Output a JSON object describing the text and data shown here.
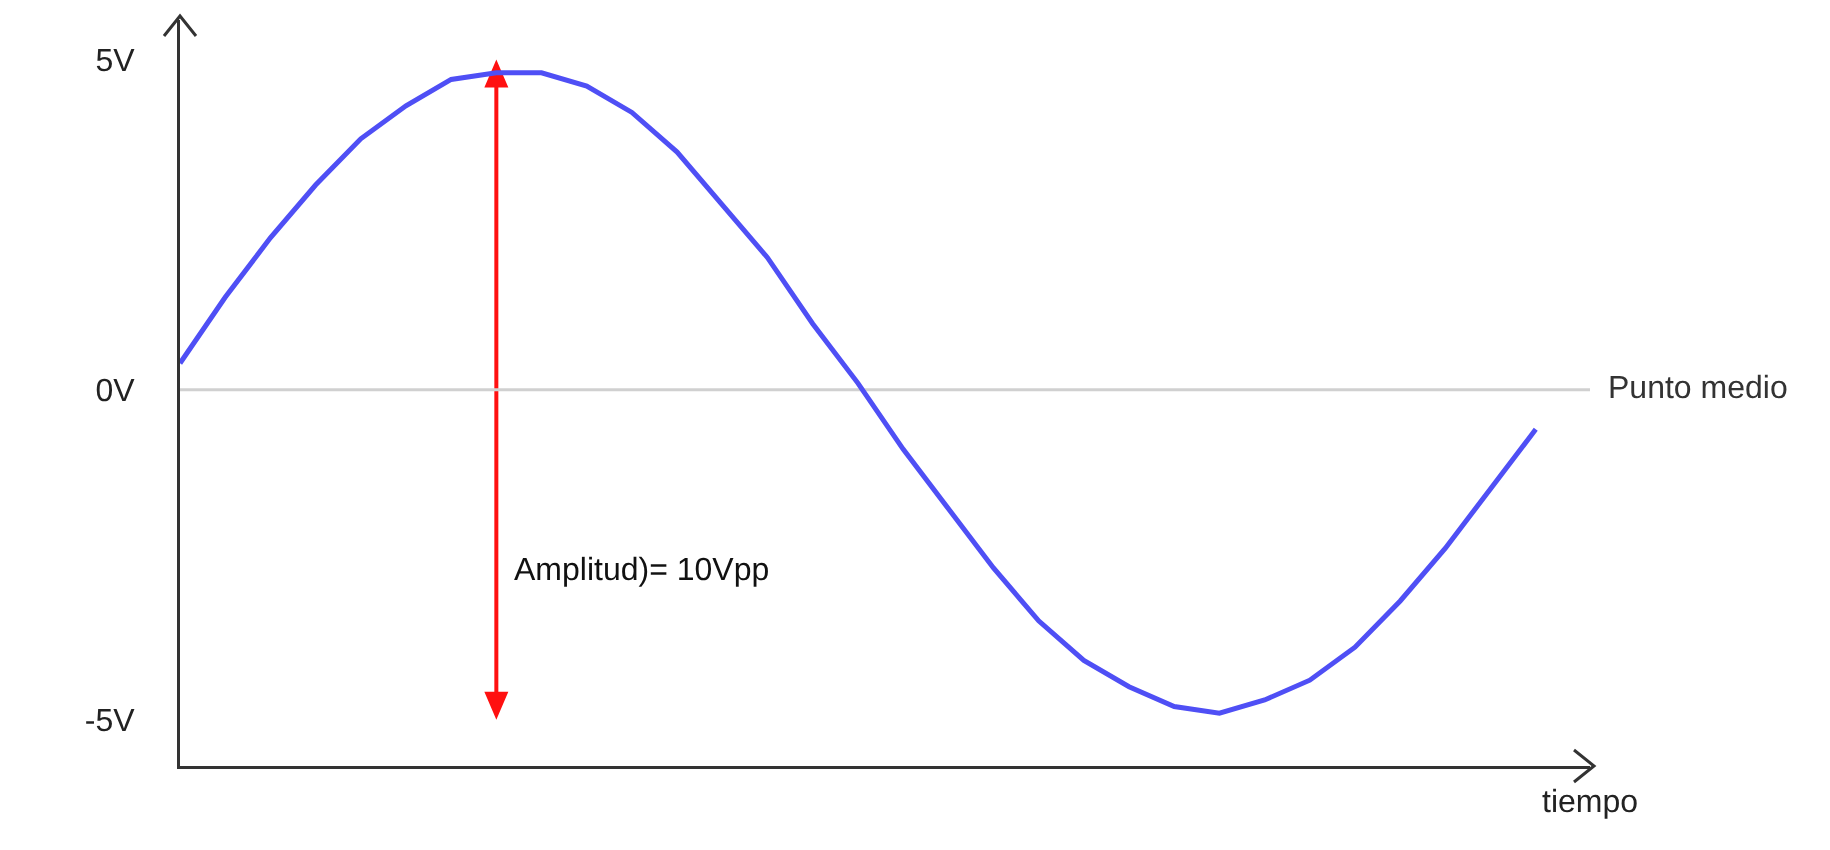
{
  "chart_data": {
    "type": "line",
    "xlabel": "tiempo",
    "categories": [
      null,
      null,
      null,
      null,
      null,
      null,
      null,
      null,
      null,
      null,
      null,
      null,
      null,
      null,
      null,
      null,
      null,
      null,
      null,
      null,
      null,
      null,
      null,
      null,
      null,
      null,
      null,
      null,
      null,
      null,
      null
    ],
    "series": [
      {
        "color": "#4f4ff5",
        "values": [
          0.4,
          1.4,
          2.3,
          3.1,
          3.8,
          4.3,
          4.7,
          4.8,
          4.8,
          4.6,
          4.2,
          3.6,
          2.8,
          2.0,
          1.0,
          0.1,
          -0.9,
          -1.8,
          -2.7,
          -3.5,
          -4.1,
          -4.5,
          -4.8,
          -4.9,
          -4.7,
          -4.4,
          -3.9,
          -3.2,
          -2.4,
          -1.5,
          -0.6
        ]
      }
    ],
    "ylim": [
      -5.7,
      5.6
    ],
    "yticks": [
      {
        "value": -5,
        "label": "-5V"
      },
      {
        "value": 0,
        "label": "0V"
      },
      {
        "value": 5,
        "label": "5V"
      }
    ],
    "ref_lines": [
      {
        "axis": "y",
        "value": 0,
        "label": "Punto medio",
        "color": "#d0d0d0"
      }
    ],
    "annotations": [
      "Amplitud)= 10Vpp"
    ],
    "grid": false,
    "marker": "none",
    "line_style": "solid"
  }
}
